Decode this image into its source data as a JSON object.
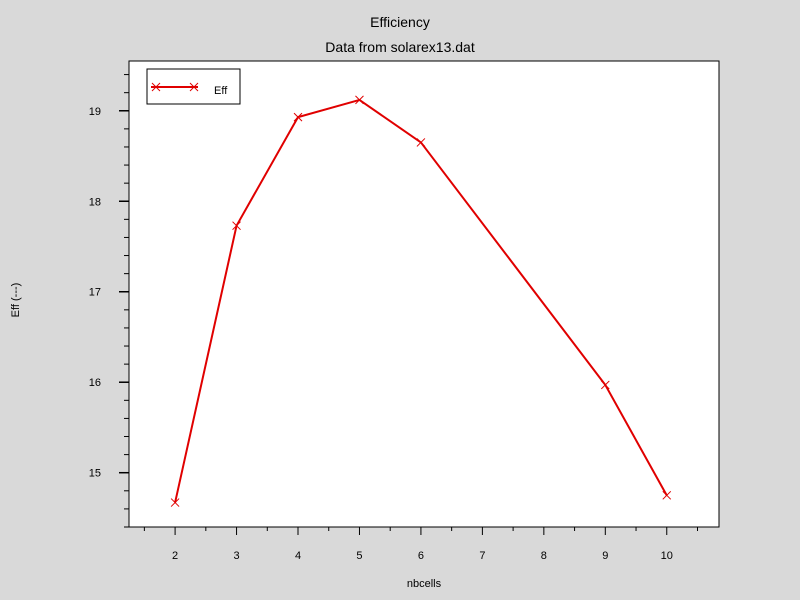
{
  "chart_data": {
    "type": "line",
    "title": "Efficiency",
    "subtitle": "Data from solarex13.dat",
    "xlabel": "nbcells",
    "ylabel": "Eff (---)",
    "xlim": [
      1.25,
      10.85
    ],
    "ylim": [
      14.4,
      19.55
    ],
    "xticks": [
      2,
      3,
      4,
      5,
      6,
      7,
      8,
      9,
      10
    ],
    "xtick_labels": [
      "2",
      "3",
      "4",
      "5",
      "6",
      "7",
      "8",
      "9",
      "10"
    ],
    "yticks": [
      15,
      16,
      17,
      18,
      19
    ],
    "ytick_labels": [
      "15",
      "16",
      "17",
      "18",
      "19"
    ],
    "grid": false,
    "legend": {
      "position": "top-left",
      "entries": [
        "Eff"
      ]
    },
    "series": [
      {
        "name": "Eff",
        "color": "#e00000",
        "marker": "x",
        "x": [
          2,
          3,
          4,
          5,
          6,
          9,
          10
        ],
        "y": [
          14.67,
          17.73,
          18.93,
          19.12,
          18.65,
          15.97,
          14.75
        ]
      }
    ]
  }
}
